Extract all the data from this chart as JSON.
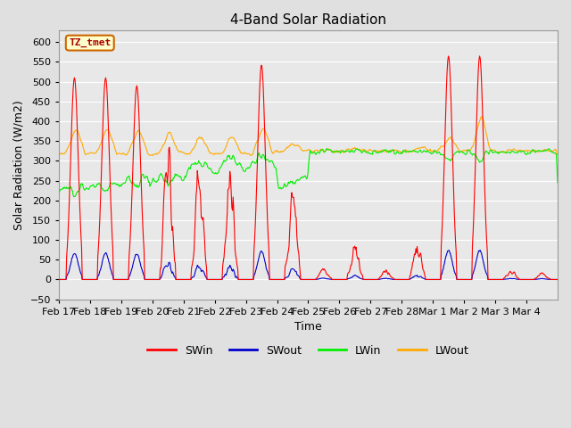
{
  "title": "4-Band Solar Radiation",
  "xlabel": "Time",
  "ylabel": "Solar Radiation (W/m2)",
  "ylim": [
    -50,
    630
  ],
  "yticks": [
    -50,
    0,
    50,
    100,
    150,
    200,
    250,
    300,
    350,
    400,
    450,
    500,
    550,
    600
  ],
  "bg_color": "#e0e0e0",
  "plot_bg_color": "#e8e8e8",
  "grid_color": "#ffffff",
  "colors": {
    "SWin": "#ff0000",
    "SWout": "#0000cc",
    "LWin": "#00ee00",
    "LWout": "#ffaa00"
  },
  "legend_label": "TZ_tmet",
  "x_labels": [
    "Feb 17",
    "Feb 18",
    "Feb 19",
    "Feb 20",
    "Feb 21",
    "Feb 22",
    "Feb 23",
    "Feb 24",
    "Feb 25",
    "Feb 26",
    "Feb 27",
    "Feb 28",
    "Mar 1",
    "Mar 2",
    "Mar 3",
    "Mar 4"
  ]
}
